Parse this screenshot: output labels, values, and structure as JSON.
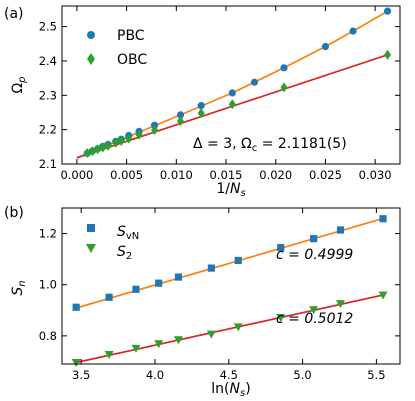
{
  "colors": {
    "pbc_marker": "#1f77b4",
    "obc_marker": "#2ca02c",
    "fit_orange": "#ff7f0e",
    "fit_red": "#d62728"
  },
  "chart_data": [
    {
      "panel_label": "(a)",
      "type": "scatter",
      "xlabel": "1/N_s",
      "ylabel": "Ω_p",
      "xlim": [
        -0.0015,
        0.0325
      ],
      "ylim": [
        2.1,
        2.56
      ],
      "xticks": [
        0.0,
        0.005,
        0.01,
        0.015,
        0.02,
        0.025,
        0.03
      ],
      "xtick_labels": [
        "0.000",
        "0.005",
        "0.010",
        "0.015",
        "0.020",
        "0.025",
        "0.030"
      ],
      "yticks": [
        2.1,
        2.2,
        2.3,
        2.4,
        2.5
      ],
      "ytick_labels": [
        "2.1",
        "2.2",
        "2.3",
        "2.4",
        "2.5"
      ],
      "legend_position": "top-left",
      "annotation": "Δ = 3, Ω_c = 2.1181(5)",
      "series": [
        {
          "name": "PBC",
          "marker": "circle",
          "color": "#1f77b4",
          "x": [
            0.03125,
            0.02778,
            0.025,
            0.02083,
            0.01786,
            0.01563,
            0.0125,
            0.01042,
            0.00781,
            0.00625,
            0.00521,
            0.00446,
            0.00391,
            0.00313,
            0.0026,
            0.00208,
            0.00156,
            0.00104
          ],
          "y": [
            2.545,
            2.487,
            2.442,
            2.38,
            2.338,
            2.307,
            2.27,
            2.243,
            2.213,
            2.195,
            2.183,
            2.172,
            2.166,
            2.157,
            2.151,
            2.144,
            2.138,
            2.131
          ]
        },
        {
          "name": "OBC",
          "marker": "diamond",
          "color": "#2ca02c",
          "x": [
            0.03125,
            0.02083,
            0.01563,
            0.0125,
            0.01042,
            0.00781,
            0.00625,
            0.00521,
            0.00446,
            0.00391,
            0.00313,
            0.0026,
            0.00208,
            0.00156,
            0.00104
          ],
          "y": [
            2.418,
            2.323,
            2.274,
            2.248,
            2.225,
            2.199,
            2.185,
            2.174,
            2.167,
            2.162,
            2.153,
            2.148,
            2.143,
            2.137,
            2.132
          ]
        }
      ],
      "fit_lines": [
        {
          "color": "#ff7f0e",
          "x": [
            0.0,
            0.00521,
            0.01042,
            0.01563,
            0.02083,
            0.025,
            0.02778,
            0.03125
          ],
          "y": [
            2.118,
            2.18,
            2.243,
            2.307,
            2.38,
            2.442,
            2.487,
            2.545
          ]
        },
        {
          "color": "#d62728",
          "x": [
            0.0,
            0.03125
          ],
          "y": [
            2.118,
            2.418
          ]
        }
      ]
    },
    {
      "panel_label": "(b)",
      "type": "scatter",
      "xlabel": "ln(N_s)",
      "ylabel": "S_n",
      "xlim": [
        3.37,
        5.66
      ],
      "ylim": [
        0.69,
        1.3
      ],
      "xticks": [
        3.5,
        4.0,
        4.5,
        5.0,
        5.5
      ],
      "xtick_labels": [
        "3.5",
        "4.0",
        "4.5",
        "5.0",
        "5.5"
      ],
      "yticks": [
        0.8,
        1.0,
        1.2
      ],
      "ytick_labels": [
        "0.8",
        "1.0",
        "1.2"
      ],
      "legend_position": "top-left",
      "annotations": [
        "c = 0.4999",
        "c = 0.5012"
      ],
      "series": [
        {
          "name": "S_vN",
          "marker": "square",
          "color": "#1f77b4",
          "x": [
            3.466,
            3.689,
            3.871,
            4.025,
            4.159,
            4.382,
            4.564,
            4.852,
            5.075,
            5.257,
            5.545
          ],
          "y": [
            0.912,
            0.951,
            0.982,
            1.006,
            1.03,
            1.065,
            1.095,
            1.145,
            1.18,
            1.214,
            1.258
          ]
        },
        {
          "name": "S_2",
          "marker": "triangle-down",
          "color": "#2ca02c",
          "x": [
            3.466,
            3.689,
            3.871,
            4.025,
            4.159,
            4.382,
            4.564,
            4.852,
            5.075,
            5.257,
            5.545
          ],
          "y": [
            0.696,
            0.727,
            0.751,
            0.769,
            0.785,
            0.807,
            0.835,
            0.872,
            0.902,
            0.926,
            0.96
          ]
        }
      ],
      "fit_lines": [
        {
          "color": "#ff7f0e",
          "x": [
            3.466,
            5.545
          ],
          "y": [
            0.909,
            1.259
          ]
        },
        {
          "color": "#d62728",
          "x": [
            3.466,
            5.545
          ],
          "y": [
            0.696,
            0.96
          ]
        }
      ]
    }
  ]
}
